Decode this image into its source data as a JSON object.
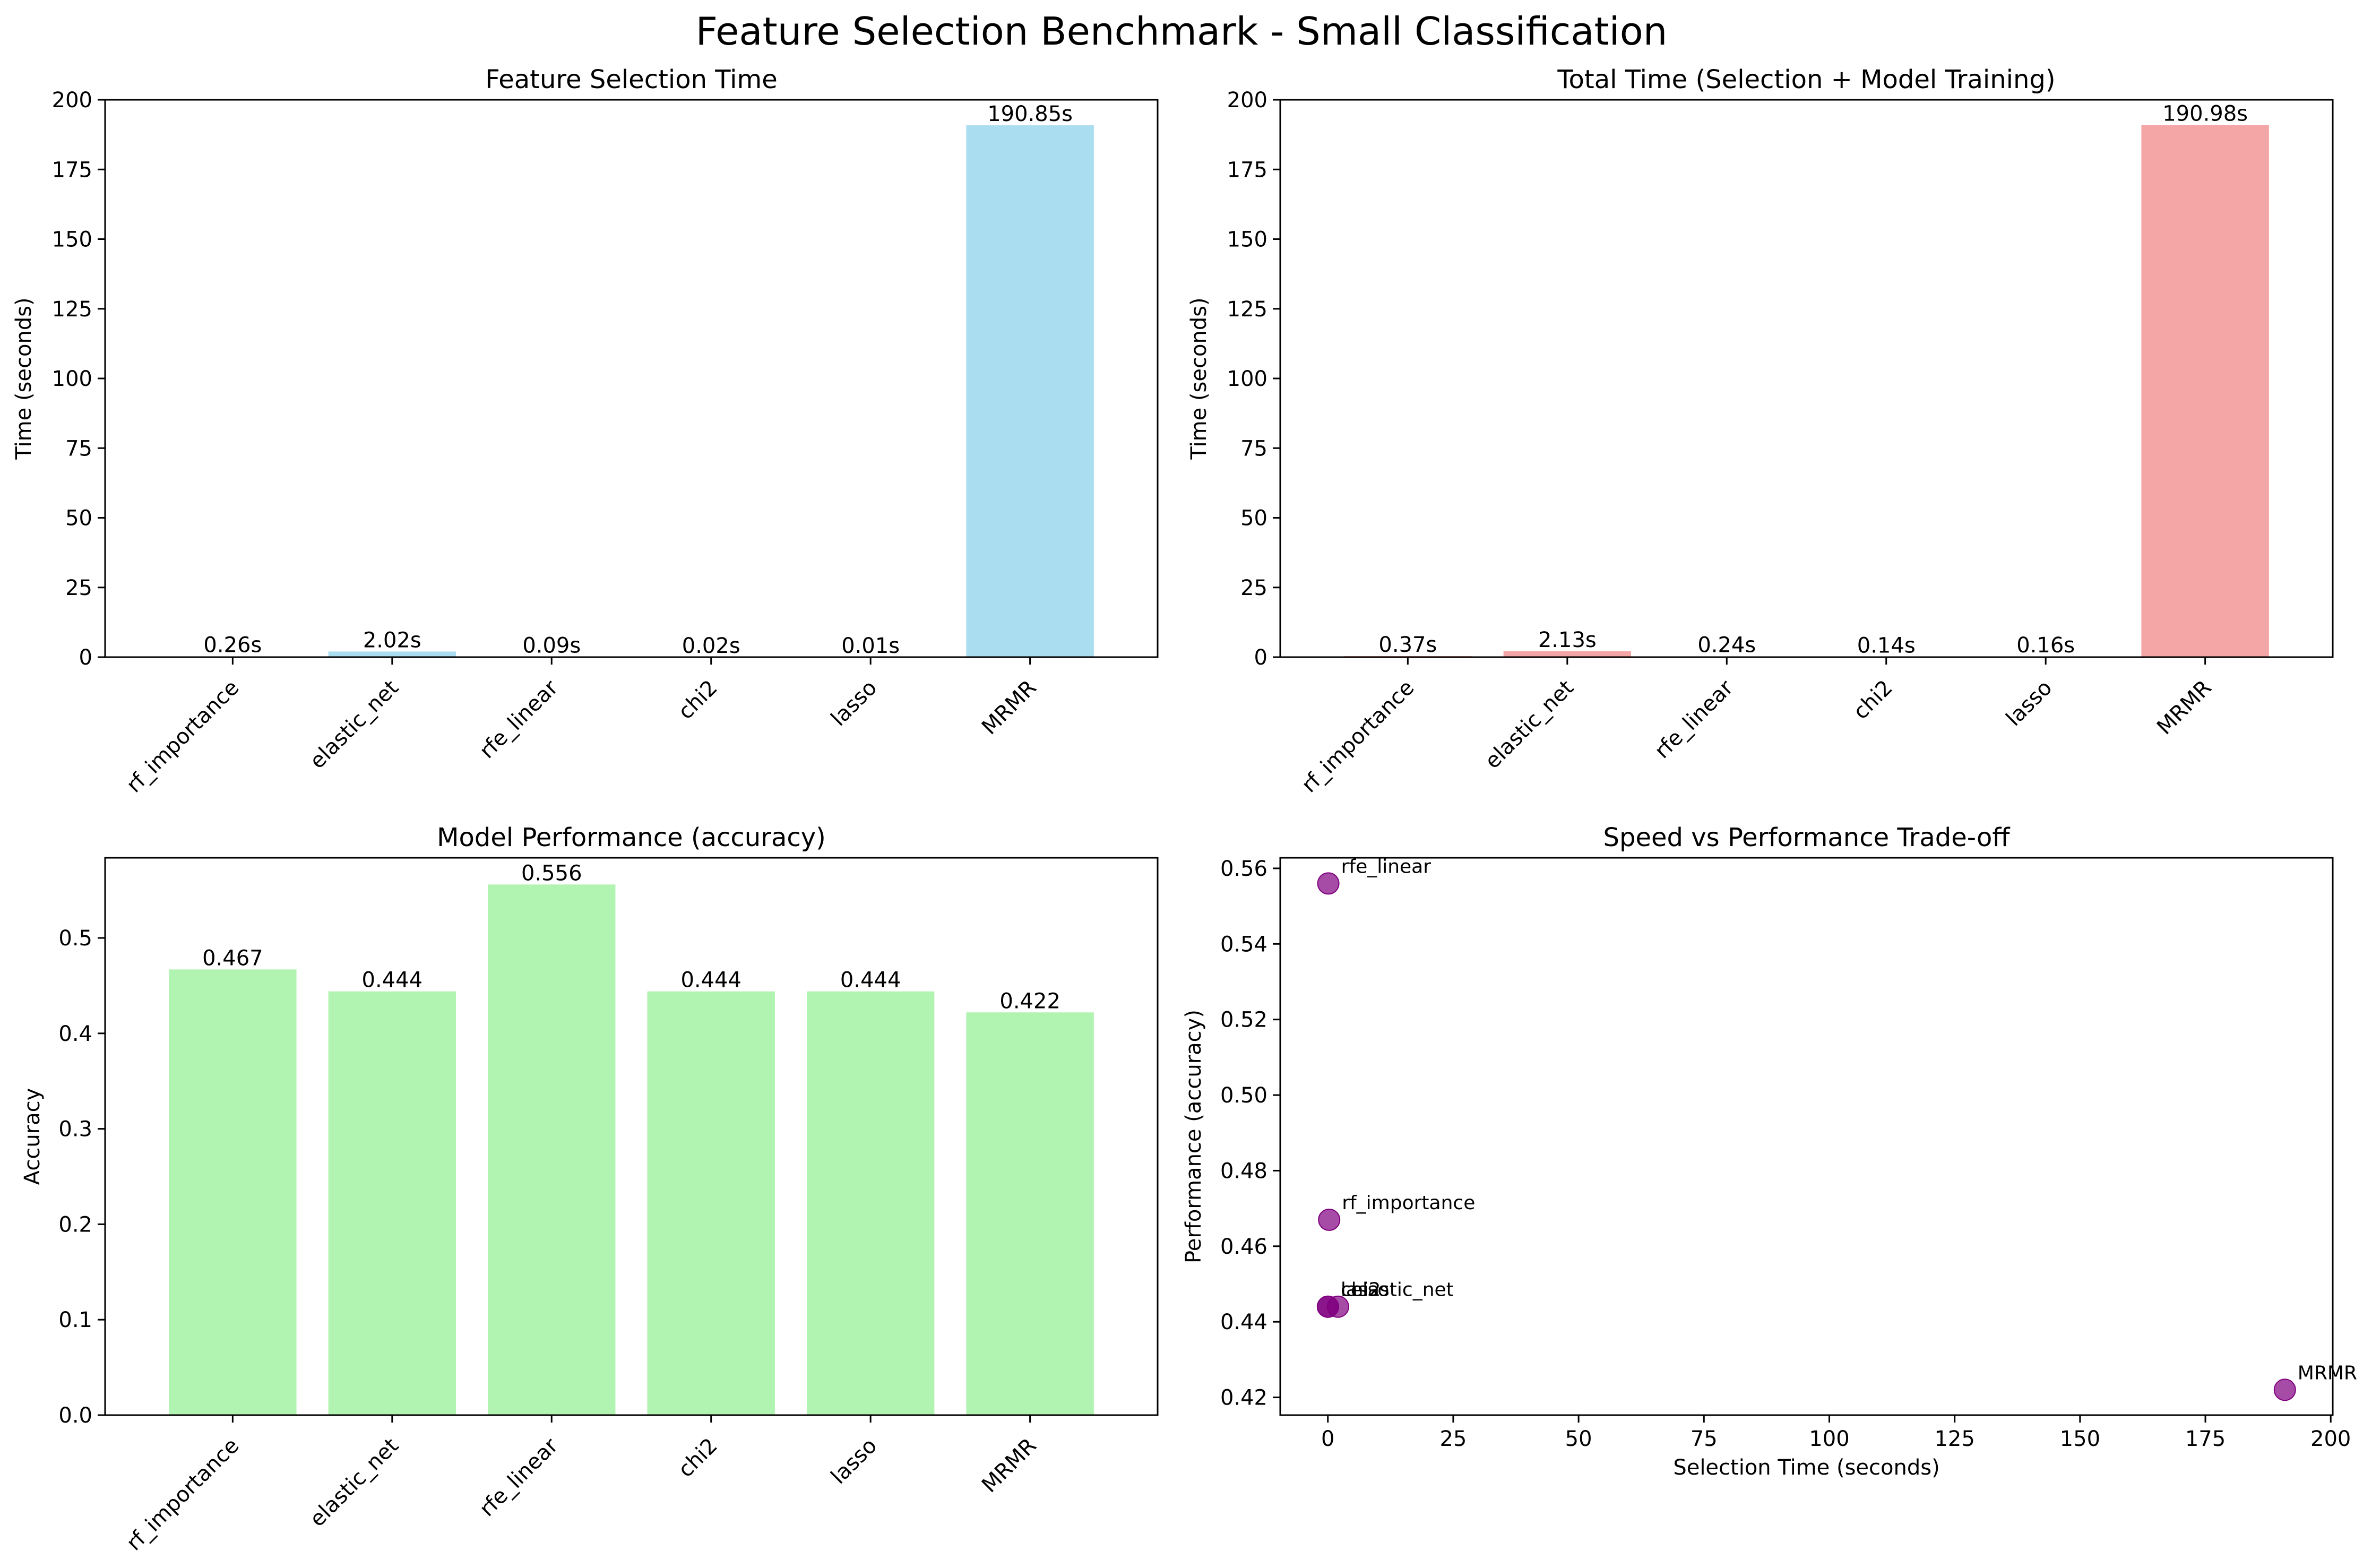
{
  "figure": {
    "title": "Feature Selection Benchmark - Small Classification"
  },
  "chart_data": [
    {
      "type": "bar",
      "title": "Feature Selection Time",
      "xlabel": "",
      "ylabel": "Time (seconds)",
      "categories": [
        "rf_importance",
        "elastic_net",
        "rfe_linear",
        "chi2",
        "lasso",
        "MRMR"
      ],
      "values": [
        0.26,
        2.02,
        0.09,
        0.02,
        0.01,
        190.85
      ],
      "labels": [
        "0.26s",
        "2.02s",
        "0.09s",
        "0.02s",
        "0.01s",
        "190.85s"
      ],
      "ylim": [
        0,
        200
      ],
      "yticks": [
        "0",
        "25",
        "50",
        "75",
        "100",
        "125",
        "150",
        "175",
        "200"
      ],
      "color": "#87ceeb",
      "grid": false
    },
    {
      "type": "bar",
      "title": "Total Time (Selection + Model Training)",
      "xlabel": "",
      "ylabel": "Time (seconds)",
      "categories": [
        "rf_importance",
        "elastic_net",
        "rfe_linear",
        "chi2",
        "lasso",
        "MRMR"
      ],
      "values": [
        0.37,
        2.13,
        0.24,
        0.14,
        0.16,
        190.98
      ],
      "labels": [
        "0.37s",
        "2.13s",
        "0.24s",
        "0.14s",
        "0.16s",
        "190.98s"
      ],
      "ylim": [
        0,
        200
      ],
      "yticks": [
        "0",
        "25",
        "50",
        "75",
        "100",
        "125",
        "150",
        "175",
        "200"
      ],
      "color": "#f08080",
      "grid": false
    },
    {
      "type": "bar",
      "title": "Model Performance (accuracy)",
      "xlabel": "",
      "ylabel": "Accuracy",
      "categories": [
        "rf_importance",
        "elastic_net",
        "rfe_linear",
        "chi2",
        "lasso",
        "MRMR"
      ],
      "values": [
        0.467,
        0.444,
        0.556,
        0.444,
        0.444,
        0.422
      ],
      "labels": [
        "0.467",
        "0.444",
        "0.556",
        "0.444",
        "0.444",
        "0.422"
      ],
      "ylim": [
        0,
        0.584
      ],
      "yticks": [
        "0.0",
        "0.1",
        "0.2",
        "0.3",
        "0.4",
        "0.5"
      ],
      "color": "#90ee90",
      "grid": false
    },
    {
      "type": "scatter",
      "title": "Speed vs Performance Trade-off",
      "xlabel": "Selection Time (seconds)",
      "ylabel": "Performance (accuracy)",
      "points": [
        {
          "label": "rf_importance",
          "x": 0.26,
          "y": 0.467
        },
        {
          "label": "elastic_net",
          "x": 2.02,
          "y": 0.444
        },
        {
          "label": "rfe_linear",
          "x": 0.09,
          "y": 0.556
        },
        {
          "label": "chi2",
          "x": 0.02,
          "y": 0.444
        },
        {
          "label": "lasso",
          "x": 0.01,
          "y": 0.444
        },
        {
          "label": "MRMR",
          "x": 190.85,
          "y": 0.422
        }
      ],
      "xlim": [
        -9.5,
        200.4
      ],
      "ylim": [
        0.4153,
        0.5628
      ],
      "xticks": [
        "0",
        "25",
        "50",
        "75",
        "100",
        "125",
        "150",
        "175",
        "200"
      ],
      "yticks": [
        "0.42",
        "0.44",
        "0.46",
        "0.48",
        "0.50",
        "0.52",
        "0.54",
        "0.56"
      ],
      "color": "#800080",
      "grid": false
    }
  ]
}
